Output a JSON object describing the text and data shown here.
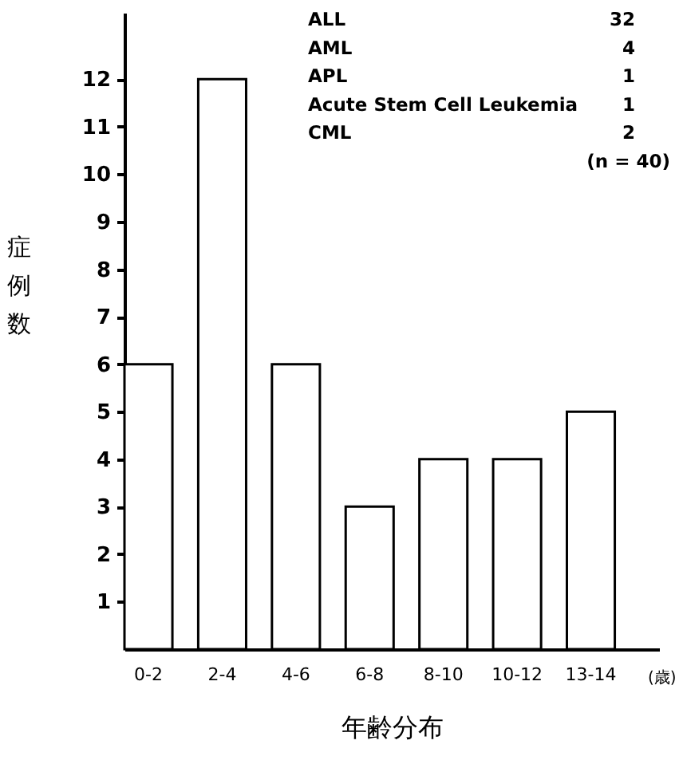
{
  "chart_data": {
    "type": "bar",
    "categories": [
      "0-2",
      "2-4",
      "4-6",
      "6-8",
      "8-10",
      "10-12",
      "13-14"
    ],
    "values": [
      6,
      12,
      6,
      3,
      4,
      4,
      5
    ],
    "color": "#ffffff",
    "ylim": [
      0,
      13.4
    ],
    "yticks": [
      1,
      2,
      3,
      4,
      5,
      6,
      7,
      8,
      9,
      10,
      11,
      12
    ],
    "xlabel": "年齢分布",
    "ylabel": "症例数",
    "annotations": [
      "ALL",
      "32",
      "AML",
      "4",
      "APL",
      "1",
      "Acute Stem Cell Leukemia",
      "1",
      "CML",
      "2",
      "(n = 40)",
      "(歳)"
    ]
  }
}
